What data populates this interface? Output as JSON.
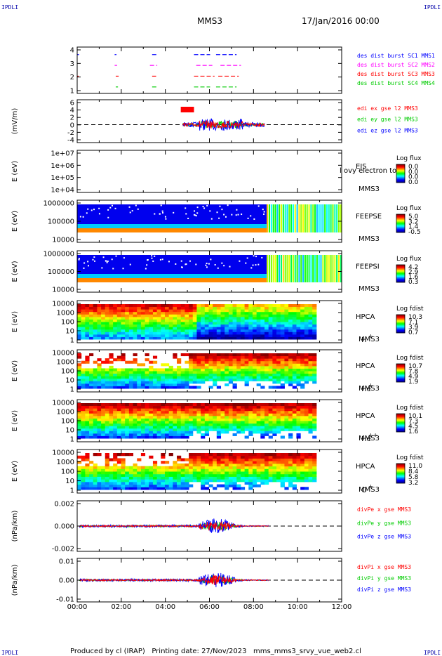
{
  "header": {
    "corner_label": "IPDLI",
    "title": "MMS3",
    "date": "17/Jan/2016 00:00"
  },
  "footer": {
    "text": "Produced by cl (IRAP)   Printing date: 27/Nov/2023   mms_mms3_srvy_vue_web2.cl"
  },
  "colors": {
    "mms1": "#0000ff",
    "mms2": "#ff00ff",
    "mms3": "#ff0000",
    "mms4": "#00cc00",
    "x": "#ff0000",
    "y": "#00cc00",
    "z": "#0000ff"
  },
  "chart_data": [
    {
      "type": "scatter",
      "ylabel": "",
      "yticks": [
        "4",
        "3",
        "2",
        "1"
      ],
      "legend": [
        "des dist burst SC1 MMS1",
        "des dist burst SC2 MMS2",
        "des dist burst SC3 MMS3",
        "des dist burst SC4 MMS4"
      ]
    },
    {
      "type": "line",
      "ylabel": "(mV/m)",
      "yticks": [
        "6",
        "4",
        "2",
        "0",
        "-2",
        "-4"
      ],
      "ylim": [
        -5,
        6
      ],
      "legend": [
        "edi ex gse l2 MMS3",
        "edi ey gse l2 MMS3",
        "edi ez gse l2 MMS3"
      ]
    },
    {
      "type": "heatmap",
      "ylabel": "E (eV)",
      "yticks": [
        "1e+07",
        "1e+06",
        "1e+05",
        "1e+04"
      ],
      "instrument": "EIS",
      "sub": "MMS3",
      "overlay": "l ovy electron to",
      "cbar_title": "Log flux",
      "cbar_ticks": [
        "0.0",
        "0.0",
        "0.0",
        "0.0"
      ]
    },
    {
      "type": "heatmap",
      "ylabel": "E (eV)",
      "yticks": [
        "1000000",
        "100000",
        "10000"
      ],
      "instrument": "FEEPSE",
      "sub": "MMS3",
      "cbar_title": "Log flux",
      "cbar_ticks": [
        "5.0",
        "3.2",
        "1.4",
        "-0.5"
      ]
    },
    {
      "type": "heatmap",
      "ylabel": "E (eV)",
      "yticks": [
        "1000000",
        "100000",
        "10000"
      ],
      "instrument": "FEEPSI",
      "sub": "MMS3",
      "cbar_title": "Log flux",
      "cbar_ticks": [
        "4.2",
        "2.9",
        "1.6",
        "0.3"
      ]
    },
    {
      "type": "heatmap",
      "ylabel": "E (eV)",
      "yticks": [
        "10000",
        "1000",
        "100",
        "10",
        "1"
      ],
      "instrument": "HPCA",
      "sub": "MMS3",
      "species": "H",
      "charge": "+",
      "cbar_title": "Log fdist",
      "cbar_ticks": [
        "10.3",
        "7.1",
        "3.9",
        "0.7"
      ]
    },
    {
      "type": "heatmap",
      "ylabel": "E (eV)",
      "yticks": [
        "10000",
        "1000",
        "100",
        "10",
        "1"
      ],
      "instrument": "HPCA",
      "sub": "MMS3",
      "species": "He",
      "charge": "+",
      "cbar_title": "Log fdist",
      "cbar_ticks": [
        "10.7",
        "7.8",
        "4.9",
        "1.9"
      ]
    },
    {
      "type": "heatmap",
      "ylabel": "E (eV)",
      "yticks": [
        "10000",
        "1000",
        "100",
        "10",
        "1"
      ],
      "instrument": "HPCA",
      "sub": "MMS3",
      "species": "He",
      "charge": "++",
      "cbar_title": "Log fdist",
      "cbar_ticks": [
        "10.1",
        "7.3",
        "4.5",
        "1.6"
      ]
    },
    {
      "type": "heatmap",
      "ylabel": "E (eV)",
      "yticks": [
        "10000",
        "1000",
        "100",
        "10",
        "1"
      ],
      "instrument": "HPCA",
      "sub": "MMS3",
      "species": "O",
      "charge": "+",
      "cbar_title": "Log fdist",
      "cbar_ticks": [
        "11.0",
        "8.4",
        "5.8",
        "3.2"
      ]
    },
    {
      "type": "line",
      "ylabel": "(nPa/km)",
      "yticks": [
        "0.002",
        "0.000",
        "-0.002"
      ],
      "ylim": [
        -0.003,
        0.003
      ],
      "legend": [
        "divPe x gse MMS3",
        "divPe y gse MMS3",
        "divPe z gse MMS3"
      ]
    },
    {
      "type": "line",
      "ylabel": "(nPa/km)",
      "yticks": [
        "0.01",
        "0.00",
        "-0.01"
      ],
      "ylim": [
        -0.015,
        0.015
      ],
      "legend": [
        "divPi x gse MMS3",
        "divPi y gse MMS3",
        "divPi z gse MMS3"
      ]
    }
  ],
  "xaxis": {
    "ticks": [
      "00:00",
      "02:00",
      "04:00",
      "06:00",
      "08:00",
      "10:00",
      "12:00"
    ]
  }
}
